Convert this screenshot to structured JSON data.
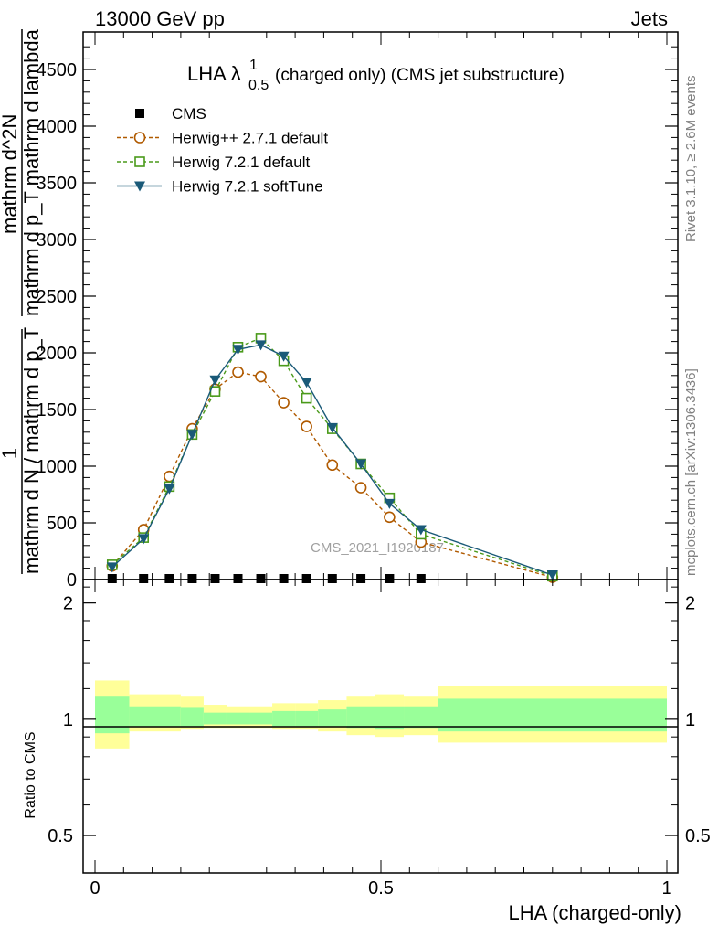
{
  "header": {
    "left": "13000 GeV pp",
    "right": "Jets"
  },
  "side_labels": {
    "rivet": "Rivet 3.1.10, ≥ 2.6M events",
    "mcplots": "mcplots.cern.ch [arXiv:1306.3436]"
  },
  "watermark": "CMS_2021_I1920187",
  "chart_data": [
    {
      "type": "line",
      "title_main": "LHA λ",
      "title_sup": "1",
      "title_sub": "0.5",
      "title_rest": "(charged only) (CMS jet substructure)",
      "ylabel_numerator": "1",
      "ylabel_denominator": "mathrm d N / mathrm d p_T",
      "ylabel_numerator2": "mathrm d^2N",
      "ylabel_denominator2": "mathrm d p_T mathrm d lambda",
      "ylim": [
        0,
        4800
      ],
      "yticks": [
        0,
        500,
        1000,
        1500,
        2000,
        2500,
        3000,
        3500,
        4000,
        4500
      ],
      "xlim": [
        0,
        1
      ],
      "legend_position": "top-left",
      "series": [
        {
          "name": "CMS",
          "style": "square-filled",
          "color": "#000000",
          "x": [
            0.03,
            0.085,
            0.13,
            0.17,
            0.21,
            0.25,
            0.29,
            0.33,
            0.37,
            0.415,
            0.465,
            0.515,
            0.57
          ],
          "y": [
            0,
            0,
            0,
            0,
            0,
            0,
            0,
            0,
            0,
            0,
            0,
            0,
            0
          ]
        },
        {
          "name": "Herwig++ 2.7.1 default",
          "style": "circle-open-dashed",
          "color": "#b05a00",
          "x": [
            0.03,
            0.085,
            0.13,
            0.17,
            0.21,
            0.25,
            0.29,
            0.33,
            0.37,
            0.415,
            0.465,
            0.515,
            0.57,
            0.8
          ],
          "y": [
            120,
            440,
            910,
            1330,
            1680,
            1830,
            1790,
            1560,
            1350,
            1010,
            810,
            550,
            330,
            20
          ]
        },
        {
          "name": "Herwig 7.2.1 default",
          "style": "square-open-dashed",
          "color": "#4a9a1a",
          "x": [
            0.03,
            0.085,
            0.13,
            0.17,
            0.21,
            0.25,
            0.29,
            0.33,
            0.37,
            0.415,
            0.465,
            0.515,
            0.57,
            0.8
          ],
          "y": [
            130,
            370,
            820,
            1280,
            1660,
            2050,
            2130,
            1930,
            1600,
            1330,
            1020,
            720,
            400,
            30
          ]
        },
        {
          "name": "Herwig 7.2.1 softTune",
          "style": "triangle-filled-solid",
          "color": "#1a5a78",
          "x": [
            0.03,
            0.085,
            0.13,
            0.17,
            0.21,
            0.25,
            0.29,
            0.33,
            0.37,
            0.415,
            0.465,
            0.515,
            0.57,
            0.8
          ],
          "y": [
            110,
            360,
            800,
            1280,
            1760,
            2030,
            2070,
            1970,
            1740,
            1340,
            1020,
            670,
            440,
            40
          ]
        }
      ]
    },
    {
      "type": "area",
      "ylabel": "Ratio to CMS",
      "xlabel": "LHA (charged-only)",
      "xlim": [
        0,
        1
      ],
      "ylim": [
        0.4,
        2.3
      ],
      "yticks": [
        0.5,
        1,
        2
      ],
      "xticks": [
        0,
        0.5,
        1
      ],
      "bins": [
        {
          "x0": 0.0,
          "x1": 0.06,
          "outer": [
            0.84,
            1.26
          ],
          "inner": [
            0.92,
            1.15
          ]
        },
        {
          "x0": 0.06,
          "x1": 0.15,
          "outer": [
            0.93,
            1.16
          ],
          "inner": [
            0.96,
            1.08
          ]
        },
        {
          "x0": 0.15,
          "x1": 0.19,
          "outer": [
            0.94,
            1.15
          ],
          "inner": [
            0.96,
            1.07
          ]
        },
        {
          "x0": 0.19,
          "x1": 0.23,
          "outer": [
            0.95,
            1.09
          ],
          "inner": [
            0.97,
            1.04
          ]
        },
        {
          "x0": 0.23,
          "x1": 0.27,
          "outer": [
            0.95,
            1.08
          ],
          "inner": [
            0.97,
            1.04
          ]
        },
        {
          "x0": 0.27,
          "x1": 0.31,
          "outer": [
            0.95,
            1.08
          ],
          "inner": [
            0.97,
            1.04
          ]
        },
        {
          "x0": 0.31,
          "x1": 0.35,
          "outer": [
            0.94,
            1.1
          ],
          "inner": [
            0.96,
            1.05
          ]
        },
        {
          "x0": 0.35,
          "x1": 0.39,
          "outer": [
            0.94,
            1.1
          ],
          "inner": [
            0.96,
            1.05
          ]
        },
        {
          "x0": 0.39,
          "x1": 0.44,
          "outer": [
            0.93,
            1.12
          ],
          "inner": [
            0.96,
            1.06
          ]
        },
        {
          "x0": 0.44,
          "x1": 0.49,
          "outer": [
            0.91,
            1.15
          ],
          "inner": [
            0.95,
            1.08
          ]
        },
        {
          "x0": 0.49,
          "x1": 0.54,
          "outer": [
            0.9,
            1.16
          ],
          "inner": [
            0.94,
            1.08
          ]
        },
        {
          "x0": 0.54,
          "x1": 0.6,
          "outer": [
            0.91,
            1.15
          ],
          "inner": [
            0.95,
            1.08
          ]
        },
        {
          "x0": 0.6,
          "x1": 1.0,
          "outer": [
            0.87,
            1.22
          ],
          "inner": [
            0.93,
            1.13
          ]
        }
      ],
      "reference": 1
    }
  ],
  "colors": {
    "band_outer": "#ffff99",
    "band_inner": "#99ff99"
  }
}
